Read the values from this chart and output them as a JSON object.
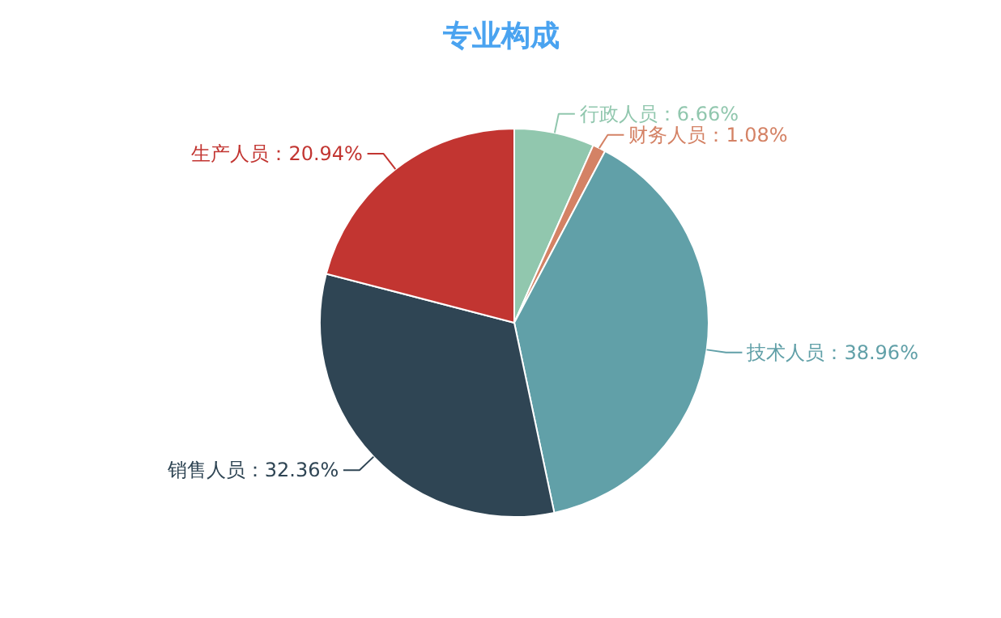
{
  "chart_data": {
    "type": "pie",
    "title": "专业构成",
    "categories": [
      "行政人员",
      "财务人员",
      "技术人员",
      "销售人员",
      "生产人员"
    ],
    "values": [
      6.66,
      1.08,
      38.96,
      32.36,
      20.94
    ],
    "colors": [
      "#91c7ae",
      "#d48265",
      "#61a0a8",
      "#2f4554",
      "#c23531"
    ],
    "value_labels": [
      "：6.66%",
      "：1.08%",
      "：38.96%",
      "：32.36%",
      "：20.94%"
    ]
  }
}
